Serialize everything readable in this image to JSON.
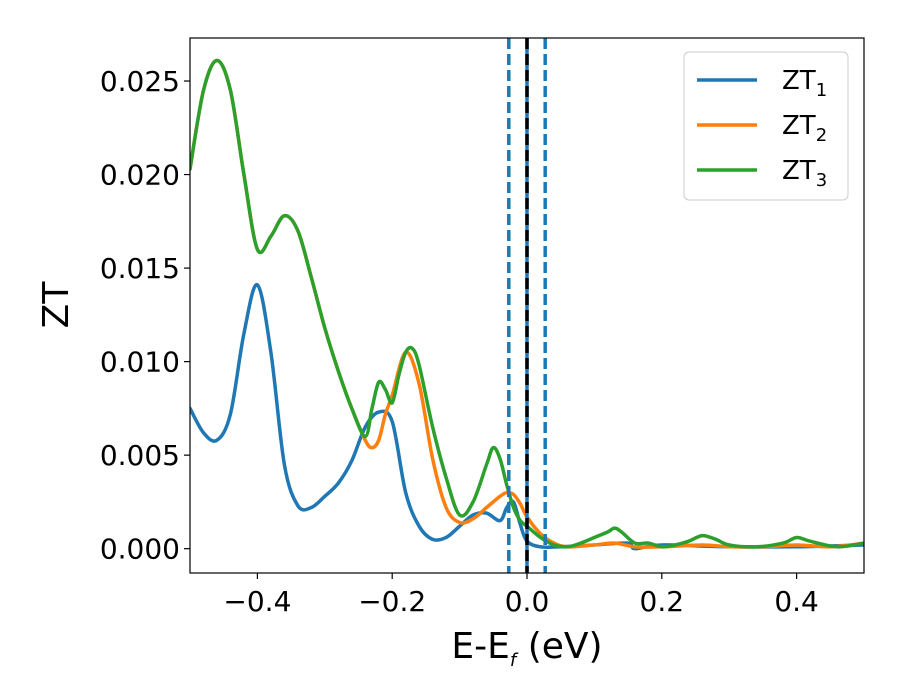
{
  "chart_data": {
    "type": "line",
    "xlabel": "E-E",
    "xlabel_sub": "f",
    "xlabel_unit": " (eV)",
    "ylabel": "ZT",
    "xlim": [
      -0.5,
      0.5
    ],
    "ylim": [
      -0.0013,
      0.0273
    ],
    "x_ticks": [
      -0.4,
      -0.2,
      0.0,
      0.2,
      0.4
    ],
    "x_tick_labels": [
      "−0.4",
      "−0.2",
      "0.0",
      "0.2",
      "0.4"
    ],
    "y_ticks": [
      0.0,
      0.005,
      0.01,
      0.015,
      0.02,
      0.025
    ],
    "y_tick_labels": [
      "0.000",
      "0.005",
      "0.010",
      "0.015",
      "0.020",
      "0.025"
    ],
    "grid": false,
    "legend_position": "top-right",
    "series": [
      {
        "name": "ZT",
        "name_sub": "1",
        "color": "#1f77b4",
        "x": [
          -0.5,
          -0.48,
          -0.46,
          -0.44,
          -0.42,
          -0.4,
          -0.38,
          -0.36,
          -0.34,
          -0.32,
          -0.3,
          -0.28,
          -0.26,
          -0.24,
          -0.22,
          -0.2,
          -0.18,
          -0.16,
          -0.14,
          -0.12,
          -0.1,
          -0.08,
          -0.06,
          -0.04,
          -0.03,
          -0.02,
          -0.01,
          0.0,
          0.02,
          0.05,
          0.1,
          0.15,
          0.16,
          0.2,
          0.3,
          0.4,
          0.5
        ],
        "y": [
          0.0075,
          0.0062,
          0.0058,
          0.0072,
          0.0115,
          0.0141,
          0.0105,
          0.0045,
          0.0023,
          0.0022,
          0.0028,
          0.0035,
          0.0047,
          0.0065,
          0.0073,
          0.0068,
          0.003,
          0.0012,
          0.0005,
          0.0006,
          0.0012,
          0.0018,
          0.0019,
          0.0015,
          0.0022,
          0.0025,
          0.0013,
          0.0004,
          0.0001,
          0.0001,
          0.0002,
          0.0003,
          0.0,
          0.0002,
          0.0001,
          0.0001,
          0.0002
        ]
      },
      {
        "name": "ZT",
        "name_sub": "2",
        "color": "#ff7f0e",
        "x": [
          -0.5,
          -0.48,
          -0.46,
          -0.44,
          -0.42,
          -0.4,
          -0.38,
          -0.36,
          -0.34,
          -0.32,
          -0.3,
          -0.28,
          -0.26,
          -0.24,
          -0.23,
          -0.22,
          -0.21,
          -0.2,
          -0.18,
          -0.16,
          -0.14,
          -0.12,
          -0.1,
          -0.08,
          -0.06,
          -0.04,
          -0.03,
          -0.02,
          -0.01,
          0.0,
          0.02,
          0.04,
          0.06,
          0.1,
          0.13,
          0.16,
          0.2,
          0.26,
          0.3,
          0.35,
          0.4,
          0.45,
          0.5
        ],
        "y": [
          0.0203,
          0.0245,
          0.0261,
          0.0245,
          0.02,
          0.016,
          0.0167,
          0.0178,
          0.017,
          0.0145,
          0.0118,
          0.0095,
          0.0075,
          0.0058,
          0.0054,
          0.0058,
          0.0072,
          0.0082,
          0.0105,
          0.0088,
          0.0048,
          0.0022,
          0.0014,
          0.0016,
          0.0022,
          0.0028,
          0.003,
          0.0029,
          0.0024,
          0.0017,
          0.0008,
          0.0003,
          0.0001,
          0.0002,
          0.0003,
          0.0001,
          0.0001,
          0.0002,
          0.0001,
          0.0001,
          0.0002,
          0.0001,
          0.0003
        ]
      },
      {
        "name": "ZT",
        "name_sub": "3",
        "color": "#2ca02c",
        "x": [
          -0.5,
          -0.48,
          -0.46,
          -0.44,
          -0.42,
          -0.4,
          -0.38,
          -0.36,
          -0.34,
          -0.32,
          -0.3,
          -0.28,
          -0.26,
          -0.24,
          -0.23,
          -0.22,
          -0.21,
          -0.2,
          -0.19,
          -0.18,
          -0.17,
          -0.16,
          -0.14,
          -0.12,
          -0.1,
          -0.08,
          -0.06,
          -0.05,
          -0.04,
          -0.03,
          -0.02,
          -0.01,
          0.0,
          0.02,
          0.04,
          0.06,
          0.08,
          0.1,
          0.12,
          0.13,
          0.14,
          0.16,
          0.18,
          0.2,
          0.22,
          0.24,
          0.26,
          0.28,
          0.3,
          0.34,
          0.38,
          0.4,
          0.42,
          0.46,
          0.5
        ],
        "y": [
          0.0203,
          0.0245,
          0.0261,
          0.0245,
          0.02,
          0.016,
          0.0167,
          0.0178,
          0.017,
          0.0145,
          0.0118,
          0.0095,
          0.0075,
          0.006,
          0.0075,
          0.0089,
          0.0085,
          0.0078,
          0.0093,
          0.0105,
          0.0107,
          0.0098,
          0.0065,
          0.0038,
          0.0018,
          0.0025,
          0.0045,
          0.0054,
          0.0048,
          0.0034,
          0.0022,
          0.0015,
          0.0012,
          0.0006,
          0.0002,
          0.0001,
          0.0003,
          0.0006,
          0.0009,
          0.0011,
          0.0009,
          0.0003,
          0.0003,
          0.0001,
          0.0002,
          0.0004,
          0.0007,
          0.0005,
          0.0002,
          0.0001,
          0.0003,
          0.0006,
          0.0004,
          0.0001,
          0.0003
        ]
      }
    ],
    "vlines": [
      {
        "x": -0.027,
        "color": "#1f77b4",
        "style": "dashed"
      },
      {
        "x": 0.0,
        "color": "#1f77b4",
        "style": "solid"
      },
      {
        "x": 0.0,
        "color": "#000000",
        "style": "dashed"
      },
      {
        "x": 0.027,
        "color": "#1f77b4",
        "style": "dashed"
      }
    ]
  }
}
